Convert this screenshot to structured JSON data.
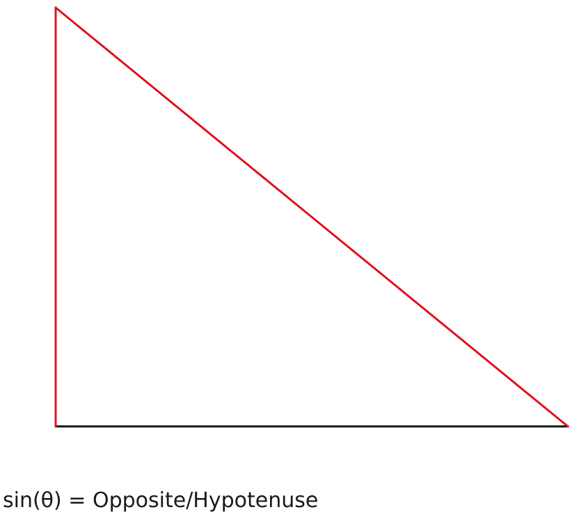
{
  "formula": {
    "text": "sin(θ) = Opposite/Hypotenuse"
  },
  "colors": {
    "opposite_side": "#e0101f",
    "hypotenuse": "#e0101f",
    "adjacent_side": "#111111",
    "text": "#1a1a1a",
    "background": "#ffffff"
  }
}
